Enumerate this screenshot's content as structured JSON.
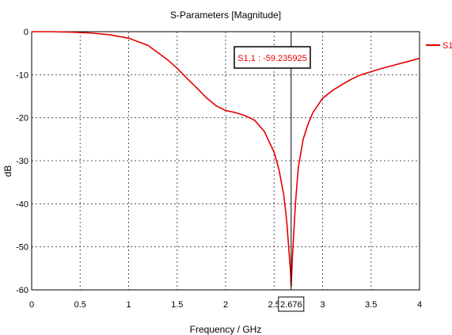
{
  "chart_data": {
    "type": "line",
    "title": "S-Parameters [Magnitude]",
    "xlabel": "Frequency / GHz",
    "ylabel": "dB",
    "xlim": [
      0,
      4
    ],
    "ylim": [
      -60,
      0
    ],
    "x_ticks": [
      "0",
      "0.5",
      "1",
      "1.5",
      "2",
      "2.5",
      "3",
      "3.5",
      "4"
    ],
    "y_ticks": [
      "0",
      "-10",
      "-20",
      "-30",
      "-40",
      "-50",
      "-60"
    ],
    "grid": true,
    "legend": "right",
    "series": [
      {
        "name": "S1,",
        "color": "#e60000",
        "x": [
          0,
          0.2,
          0.4,
          0.6,
          0.8,
          1.0,
          1.2,
          1.4,
          1.5,
          1.6,
          1.7,
          1.8,
          1.9,
          2.0,
          2.1,
          2.2,
          2.3,
          2.4,
          2.5,
          2.55,
          2.6,
          2.63,
          2.65,
          2.67,
          2.676,
          2.69,
          2.72,
          2.75,
          2.8,
          2.85,
          2.9,
          3.0,
          3.1,
          3.2,
          3.3,
          3.4,
          3.5,
          3.6,
          3.7,
          3.8,
          3.9,
          4.0
        ],
        "y": [
          0,
          0,
          -0.1,
          -0.3,
          -0.7,
          -1.5,
          -3.2,
          -6.5,
          -8.5,
          -10.8,
          -13.0,
          -15.3,
          -17.2,
          -18.3,
          -18.8,
          -19.5,
          -20.6,
          -23.2,
          -28.0,
          -32.0,
          -38.0,
          -44.0,
          -50.0,
          -56.0,
          -59.2,
          -52.0,
          -40.0,
          -31.5,
          -25.0,
          -21.5,
          -18.8,
          -15.5,
          -13.7,
          -12.3,
          -11.0,
          -10.0,
          -9.3,
          -8.6,
          -8.0,
          -7.4,
          -6.8,
          -6.2
        ]
      }
    ],
    "marker": {
      "x_label": "2.676",
      "label": "S1,1 : -59.235925"
    }
  }
}
